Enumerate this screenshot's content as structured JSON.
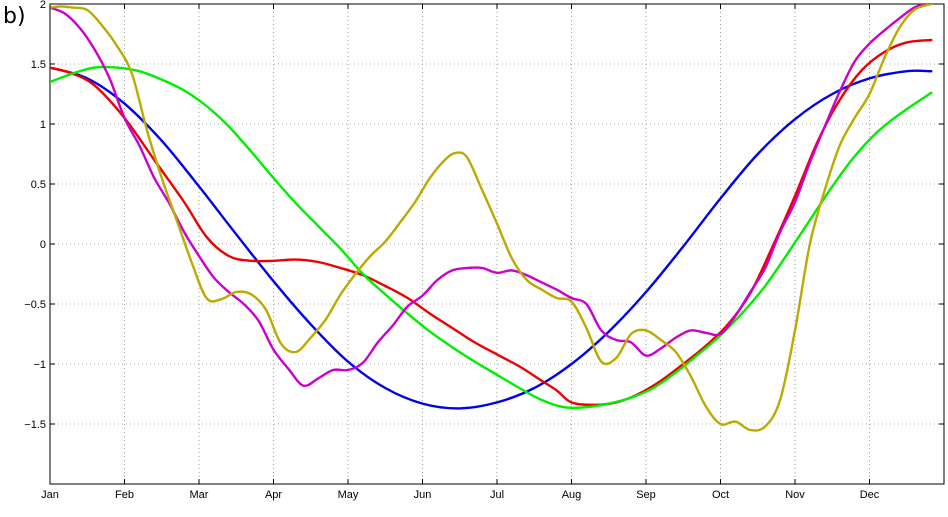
{
  "panel_label": "b)",
  "chart_data": {
    "type": "line",
    "title": "",
    "xlabel": "",
    "ylabel": "",
    "xlim": [
      0,
      12
    ],
    "ylim": [
      -2,
      2
    ],
    "grid": true,
    "x_ticks": [
      {
        "label": "Jan",
        "value": 0
      },
      {
        "label": "Feb",
        "value": 1
      },
      {
        "label": "Mar",
        "value": 2
      },
      {
        "label": "Apr",
        "value": 3
      },
      {
        "label": "May",
        "value": 4
      },
      {
        "label": "Jun",
        "value": 5
      },
      {
        "label": "Jul",
        "value": 6
      },
      {
        "label": "Aug",
        "value": 7
      },
      {
        "label": "Sep",
        "value": 8
      },
      {
        "label": "Oct",
        "value": 9
      },
      {
        "label": "Nov",
        "value": 10
      },
      {
        "label": "Dec",
        "value": 11
      }
    ],
    "y_ticks": [
      {
        "label": "2",
        "value": 2
      },
      {
        "label": "1.5",
        "value": 1.5
      },
      {
        "label": "1",
        "value": 1
      },
      {
        "label": "0.5",
        "value": 0.5
      },
      {
        "label": "0",
        "value": 0
      },
      {
        "label": "−0.5",
        "value": -0.5
      },
      {
        "label": "−1",
        "value": -1
      },
      {
        "label": "−1.5",
        "value": -1.5
      }
    ],
    "series": [
      {
        "color": "#0000ee",
        "x": [
          0,
          0.5,
          1,
          1.5,
          2,
          2.5,
          3,
          3.5,
          4,
          4.5,
          5,
          5.5,
          6,
          6.5,
          7,
          7.5,
          8,
          8.5,
          9,
          9.5,
          10,
          10.5,
          11,
          11.5,
          11.83
        ],
        "y": [
          1.47,
          1.38,
          1.17,
          0.86,
          0.48,
          0.08,
          -0.31,
          -0.67,
          -0.98,
          -1.2,
          -1.33,
          -1.37,
          -1.32,
          -1.2,
          -1.0,
          -0.73,
          -0.4,
          -0.02,
          0.38,
          0.75,
          1.04,
          1.25,
          1.38,
          1.44,
          1.44
        ]
      },
      {
        "color": "#ee0000",
        "x": [
          0,
          0.3,
          0.6,
          1,
          1.4,
          1.8,
          2.1,
          2.4,
          2.7,
          3,
          3.3,
          3.6,
          3.9,
          4.2,
          4.5,
          4.8,
          5.1,
          5.4,
          5.7,
          6,
          6.3,
          6.6,
          6.8,
          7,
          7.3,
          7.6,
          7.9,
          8.2,
          8.5,
          8.8,
          9.1,
          9.4,
          9.7,
          10,
          10.3,
          10.6,
          10.9,
          11.2,
          11.5,
          11.83
        ],
        "y": [
          1.47,
          1.42,
          1.32,
          1.05,
          0.7,
          0.35,
          0.06,
          -0.1,
          -0.14,
          -0.14,
          -0.13,
          -0.15,
          -0.2,
          -0.26,
          -0.35,
          -0.45,
          -0.58,
          -0.7,
          -0.82,
          -0.92,
          -1.02,
          -1.14,
          -1.22,
          -1.32,
          -1.34,
          -1.32,
          -1.25,
          -1.14,
          -1.0,
          -0.85,
          -0.67,
          -0.41,
          -0.02,
          0.4,
          0.85,
          1.2,
          1.45,
          1.6,
          1.68,
          1.7
        ]
      },
      {
        "color": "#00ee00",
        "x": [
          0,
          0.3,
          0.6,
          0.9,
          1.2,
          1.5,
          1.8,
          2.1,
          2.4,
          2.7,
          3,
          3.3,
          3.6,
          3.9,
          4.2,
          4.5,
          4.8,
          5.1,
          5.4,
          5.7,
          6,
          6.3,
          6.6,
          6.9,
          7.2,
          7.5,
          7.8,
          8.1,
          8.4,
          8.7,
          9,
          9.3,
          9.6,
          9.9,
          10.2,
          10.5,
          10.8,
          11.1,
          11.4,
          11.83
        ],
        "y": [
          1.35,
          1.42,
          1.47,
          1.47,
          1.44,
          1.37,
          1.28,
          1.15,
          0.98,
          0.77,
          0.55,
          0.34,
          0.15,
          -0.04,
          -0.25,
          -0.42,
          -0.58,
          -0.73,
          -0.86,
          -0.98,
          -1.09,
          -1.2,
          -1.3,
          -1.36,
          -1.36,
          -1.33,
          -1.28,
          -1.2,
          -1.07,
          -0.92,
          -0.76,
          -0.57,
          -0.35,
          -0.08,
          0.2,
          0.48,
          0.73,
          0.93,
          1.08,
          1.26
        ]
      },
      {
        "color": "#cc00cc",
        "x": [
          0,
          0.2,
          0.4,
          0.6,
          0.8,
          1,
          1.2,
          1.4,
          1.6,
          1.8,
          2,
          2.2,
          2.4,
          2.6,
          2.8,
          3,
          3.2,
          3.4,
          3.6,
          3.8,
          4,
          4.2,
          4.4,
          4.6,
          4.8,
          5,
          5.2,
          5.4,
          5.6,
          5.8,
          6,
          6.2,
          6.4,
          6.6,
          6.8,
          7,
          7.2,
          7.4,
          7.6,
          7.8,
          8,
          8.2,
          8.4,
          8.6,
          8.8,
          9,
          9.2,
          9.4,
          9.6,
          9.8,
          10,
          10.2,
          10.4,
          10.6,
          10.8,
          11,
          11.2,
          11.4,
          11.6,
          11.75
        ],
        "y": [
          1.97,
          1.92,
          1.8,
          1.62,
          1.38,
          1.05,
          0.82,
          0.55,
          0.34,
          0.1,
          -0.1,
          -0.28,
          -0.4,
          -0.5,
          -0.64,
          -0.88,
          -1.04,
          -1.18,
          -1.12,
          -1.05,
          -1.05,
          -0.99,
          -0.82,
          -0.68,
          -0.52,
          -0.43,
          -0.3,
          -0.22,
          -0.2,
          -0.2,
          -0.24,
          -0.22,
          -0.26,
          -0.32,
          -0.38,
          -0.45,
          -0.5,
          -0.72,
          -0.8,
          -0.82,
          -0.93,
          -0.87,
          -0.78,
          -0.72,
          -0.74,
          -0.75,
          -0.6,
          -0.4,
          -0.2,
          0.1,
          0.35,
          0.68,
          0.98,
          1.27,
          1.52,
          1.67,
          1.78,
          1.88,
          1.97,
          2.0
        ]
      },
      {
        "color": "#bbaa00",
        "x": [
          0,
          0.15,
          0.3,
          0.5,
          0.7,
          0.9,
          1.1,
          1.3,
          1.5,
          1.7,
          1.9,
          2.1,
          2.3,
          2.5,
          2.7,
          2.9,
          3.1,
          3.3,
          3.5,
          3.7,
          3.9,
          4.1,
          4.3,
          4.5,
          4.7,
          4.9,
          5.1,
          5.3,
          5.45,
          5.6,
          5.8,
          6,
          6.2,
          6.4,
          6.6,
          6.8,
          7,
          7.2,
          7.4,
          7.6,
          7.8,
          8,
          8.2,
          8.4,
          8.6,
          8.8,
          9,
          9.2,
          9.4,
          9.6,
          9.8,
          10,
          10.2,
          10.4,
          10.6,
          10.8,
          11,
          11.2,
          11.4,
          11.6,
          11.83
        ],
        "y": [
          1.97,
          1.98,
          1.97,
          1.95,
          1.82,
          1.65,
          1.42,
          0.95,
          0.55,
          0.2,
          -0.15,
          -0.45,
          -0.46,
          -0.4,
          -0.42,
          -0.55,
          -0.83,
          -0.9,
          -0.78,
          -0.63,
          -0.42,
          -0.25,
          -0.1,
          0.02,
          0.18,
          0.35,
          0.55,
          0.7,
          0.76,
          0.72,
          0.45,
          0.17,
          -0.12,
          -0.3,
          -0.38,
          -0.45,
          -0.48,
          -0.7,
          -0.98,
          -0.95,
          -0.75,
          -0.72,
          -0.8,
          -0.9,
          -1.1,
          -1.35,
          -1.5,
          -1.48,
          -1.55,
          -1.52,
          -1.3,
          -0.72,
          0.0,
          0.45,
          0.82,
          1.05,
          1.25,
          1.55,
          1.8,
          1.95,
          2.0
        ]
      }
    ]
  }
}
